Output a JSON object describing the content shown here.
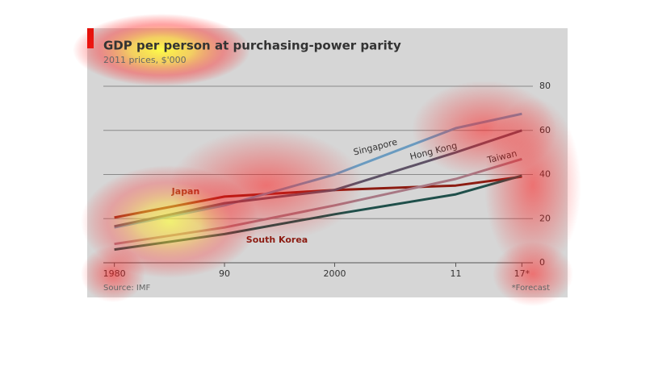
{
  "chart_data": {
    "type": "line",
    "title": "GDP per person at purchasing-power parity",
    "subtitle": "2011 prices, $'000",
    "source": "Source: IMF",
    "note": "*Forecast",
    "x": [
      1980,
      1990,
      2000,
      2011,
      2017
    ],
    "xlim": [
      1979,
      2018
    ],
    "xticks": [
      1980,
      {
        "value": 1990,
        "label": "90"
      },
      2000,
      {
        "value": 2011,
        "label": "11"
      },
      {
        "value": 2017,
        "label": "17*"
      }
    ],
    "ylim": [
      0,
      80
    ],
    "yticks": [
      0,
      20,
      40,
      60,
      80
    ],
    "grid": true,
    "series": [
      {
        "name": "Japan",
        "color": "#8c1c12",
        "values": [
          20.5,
          30,
          33,
          35,
          39
        ]
      },
      {
        "name": "South Korea",
        "color": "#1f4f4a",
        "values": [
          6,
          13,
          22,
          31,
          39.5
        ]
      },
      {
        "name": "Singapore",
        "color": "#6a9bc0",
        "values": [
          16,
          26,
          40,
          61,
          67.5
        ]
      },
      {
        "name": "Hong Kong",
        "color": "#5e5266",
        "values": [
          16.5,
          27,
          33,
          50,
          60
        ]
      },
      {
        "name": "Taiwan",
        "color": "#a87884",
        "values": [
          8.5,
          16,
          26,
          38,
          47
        ]
      }
    ]
  }
}
